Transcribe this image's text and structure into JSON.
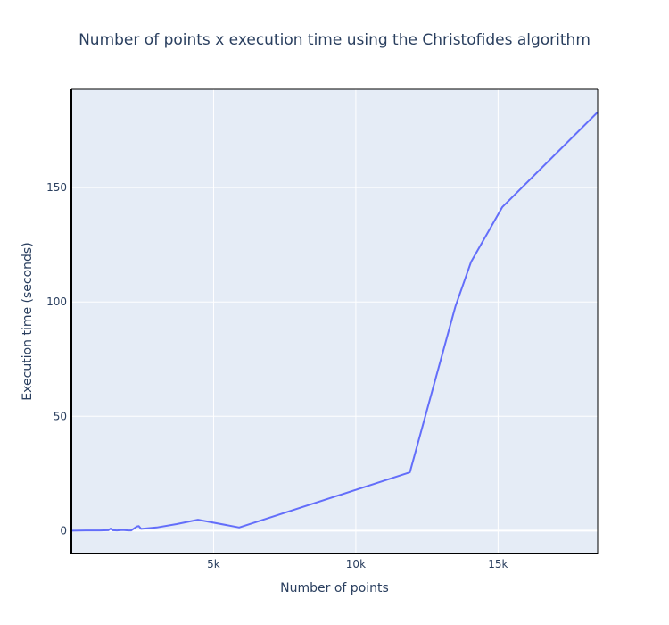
{
  "chart_data": {
    "type": "line",
    "title": "Number of points x execution time using the Christofides algorithm",
    "xlabel": "Number of points",
    "ylabel": "Execution time (seconds)",
    "xlim": [
      0,
      18500
    ],
    "ylim": [
      -10,
      193
    ],
    "x_ticks": [
      {
        "value": 5000,
        "label": "5k"
      },
      {
        "value": 10000,
        "label": "10k"
      },
      {
        "value": 15000,
        "label": "15k"
      }
    ],
    "y_ticks": [
      {
        "value": 0,
        "label": "0"
      },
      {
        "value": 50,
        "label": "50"
      },
      {
        "value": 100,
        "label": "100"
      },
      {
        "value": 150,
        "label": "150"
      }
    ],
    "grid": true,
    "colors": {
      "line": "#636efa",
      "plot_bg": "#e5ecf6",
      "grid": "#ffffff",
      "text": "#2a3f5f",
      "axis_line": "#000000"
    },
    "series": [
      {
        "x": [
          0,
          500,
          1000,
          1300,
          1380,
          1450,
          1600,
          1800,
          2000,
          2100,
          2300,
          2370,
          2450,
          3000,
          3700,
          4450,
          5900,
          11900,
          13500,
          14050,
          15150,
          18500
        ],
        "y": [
          0,
          0.1,
          0.1,
          0.2,
          0.9,
          0.2,
          0.1,
          0.3,
          0.1,
          0.1,
          1.8,
          2.0,
          0.8,
          1.4,
          2.9,
          4.8,
          1.4,
          25.5,
          98,
          117.5,
          141.5,
          183
        ]
      }
    ]
  }
}
